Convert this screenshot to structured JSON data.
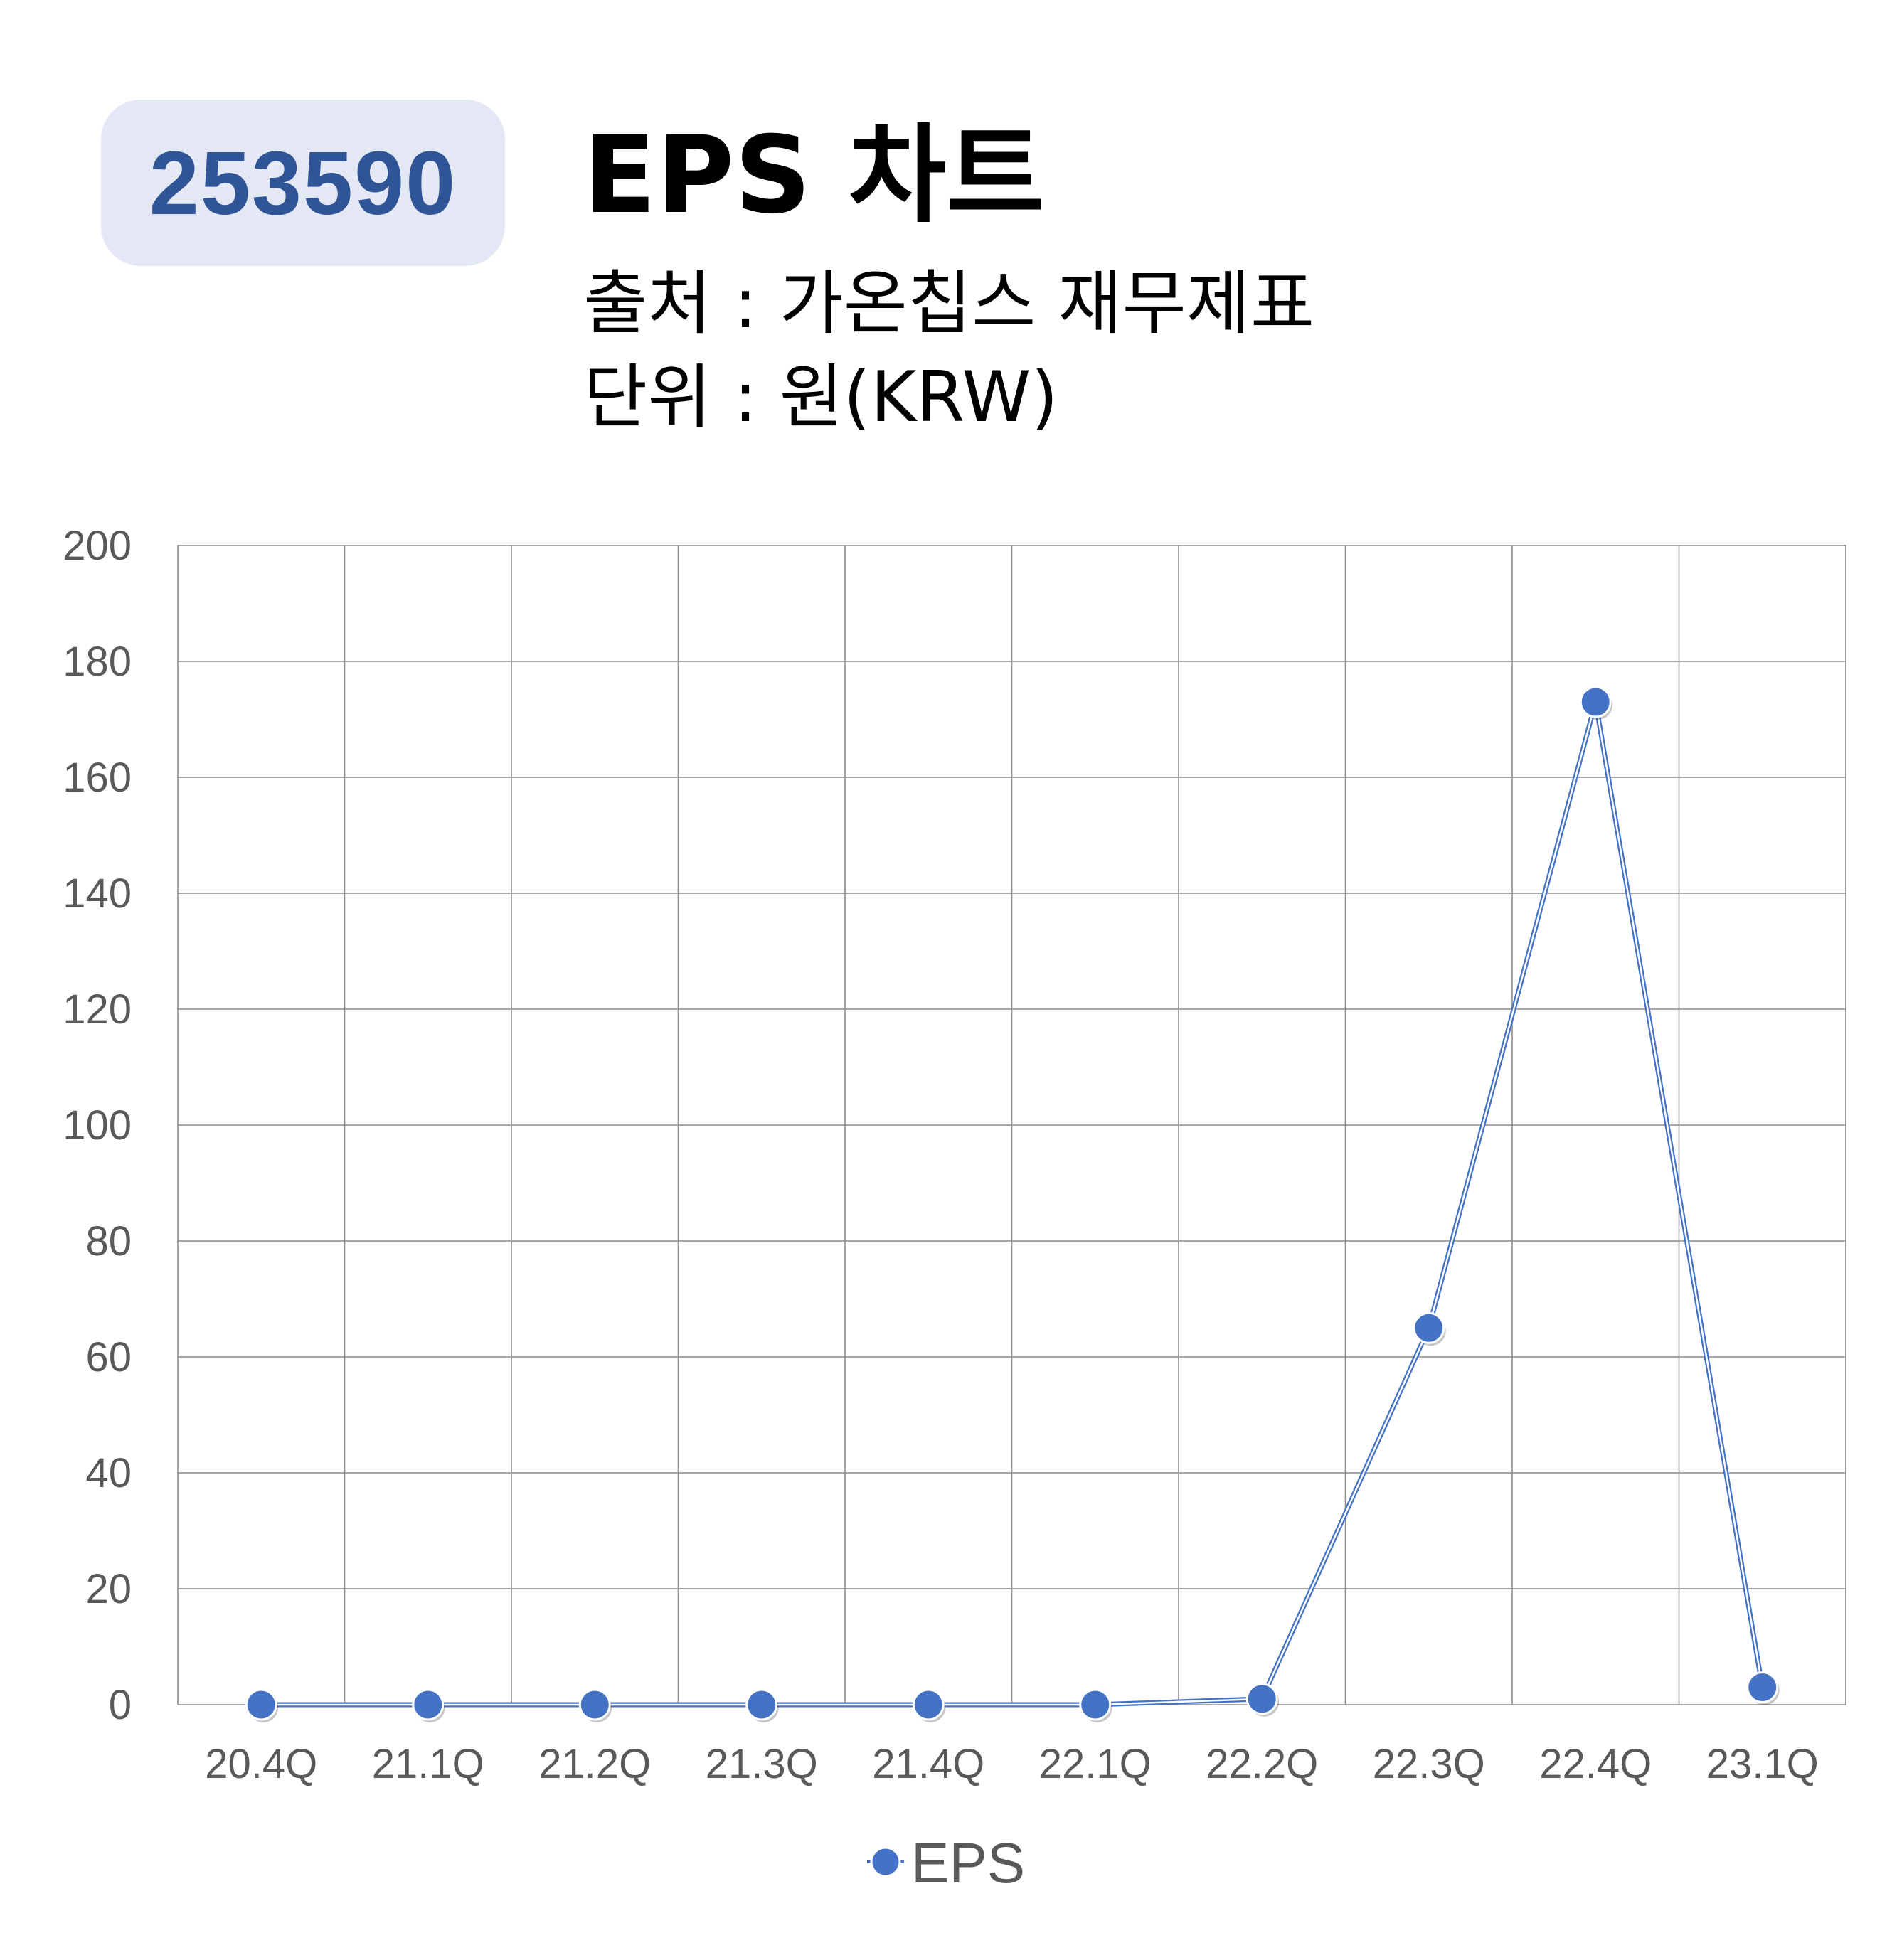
{
  "header": {
    "code": "253590",
    "title": "EPS 차트",
    "source": "출처 : 가온칩스 재무제표",
    "unit": "단위 : 원(KRW)"
  },
  "chart_data": {
    "type": "line",
    "categories": [
      "20.4Q",
      "21.1Q",
      "21.2Q",
      "21.3Q",
      "21.4Q",
      "22.1Q",
      "22.2Q",
      "22.3Q",
      "22.4Q",
      "23.1Q"
    ],
    "series": [
      {
        "name": "EPS",
        "values": [
          0,
          0,
          0,
          0,
          0,
          0,
          1,
          65,
          173,
          3
        ],
        "color": "#4472c4"
      }
    ],
    "ylim": [
      0,
      200
    ],
    "yticks": [
      0,
      20,
      40,
      60,
      80,
      100,
      120,
      140,
      160,
      180,
      200
    ],
    "grid": true,
    "legend": "bottom"
  }
}
